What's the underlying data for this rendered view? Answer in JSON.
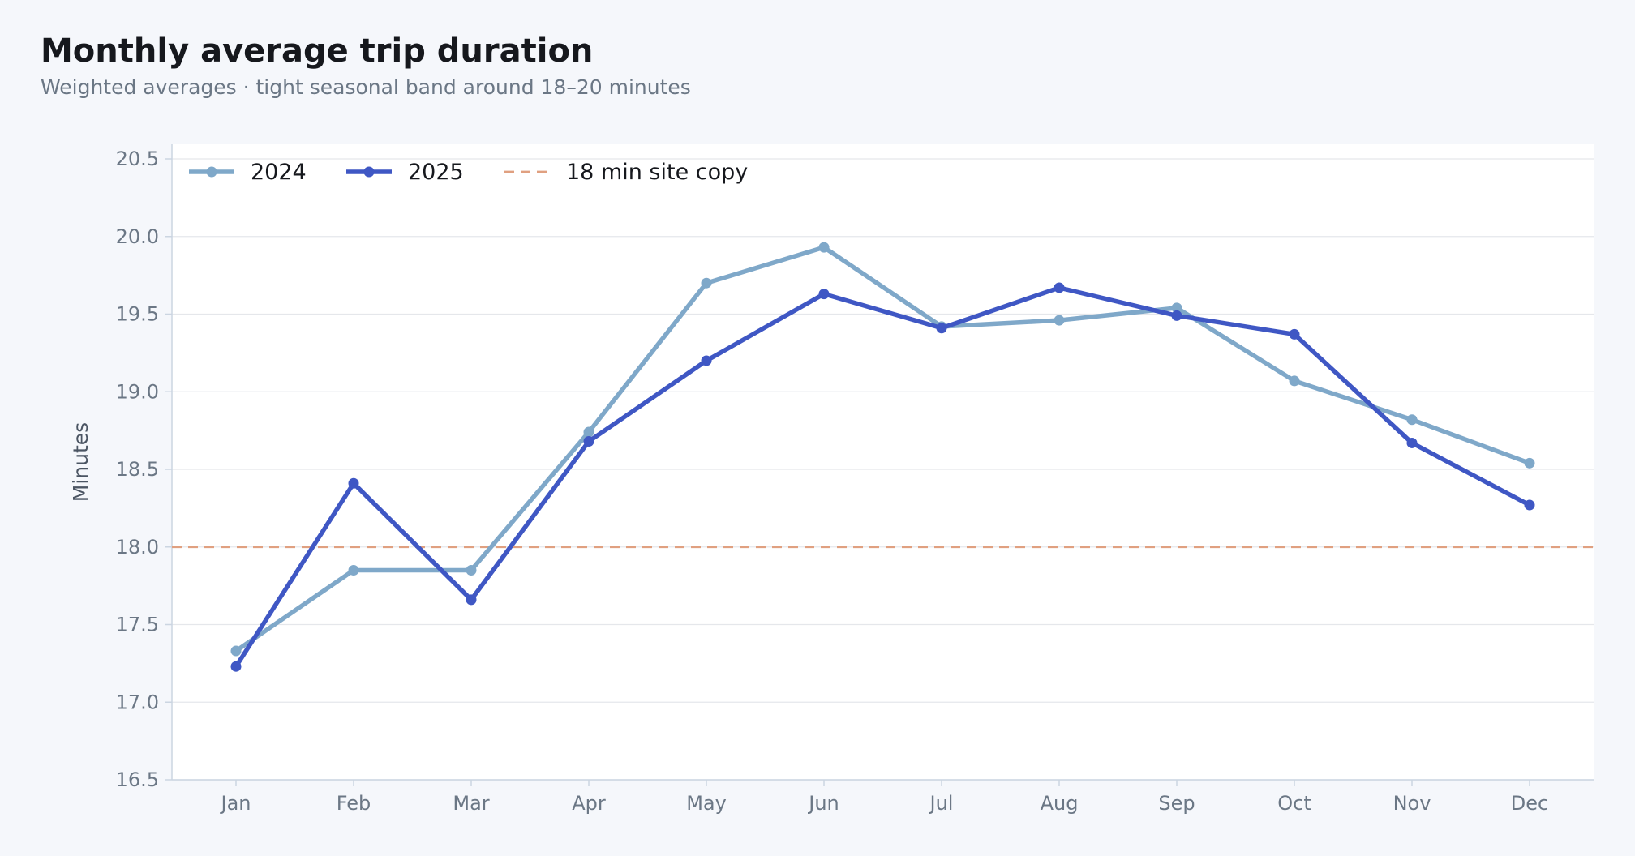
{
  "colors": {
    "background": "#f5f7fb",
    "plot_background": "#ffffff",
    "grid": "#e5e7eb",
    "axis": "#cbd5e1",
    "series_2024": "#7fa8c9",
    "series_2025": "#3f57c4",
    "reference": "#e0a080"
  },
  "chart_data": {
    "type": "line",
    "title": "Monthly average trip duration",
    "subtitle": "Weighted averages · tight seasonal band around 18–20 minutes",
    "xlabel": "",
    "ylabel": "Minutes",
    "categories": [
      "Jan",
      "Feb",
      "Mar",
      "Apr",
      "May",
      "Jun",
      "Jul",
      "Aug",
      "Sep",
      "Oct",
      "Nov",
      "Dec"
    ],
    "ylim": [
      16.5,
      20.5
    ],
    "yticks": [
      "16.5",
      "17.0",
      "17.5",
      "18.0",
      "18.5",
      "19.0",
      "19.5",
      "20.0",
      "20.5"
    ],
    "grid": true,
    "legend_position": "top-left",
    "series": [
      {
        "name": "2024",
        "color": "#7fa8c9",
        "values": [
          17.33,
          17.85,
          17.85,
          18.74,
          19.7,
          19.93,
          19.42,
          19.46,
          19.54,
          19.07,
          18.82,
          18.54
        ]
      },
      {
        "name": "2025",
        "color": "#3f57c4",
        "values": [
          17.23,
          18.41,
          17.66,
          18.68,
          19.2,
          19.63,
          19.41,
          19.67,
          19.49,
          19.37,
          18.67,
          18.27
        ]
      }
    ],
    "reference_line": {
      "name": "18 min site copy",
      "value": 18.0,
      "color": "#e0a080",
      "style": "dashed"
    }
  }
}
